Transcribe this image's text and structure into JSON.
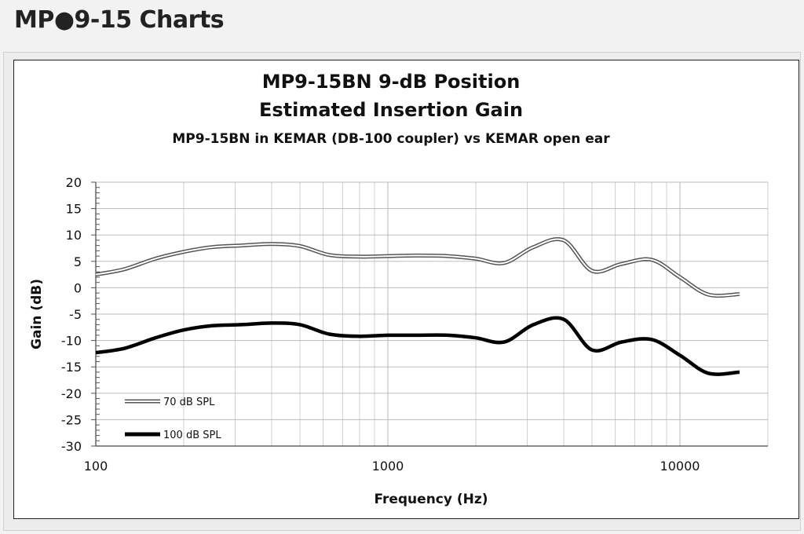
{
  "page": {
    "heading": "MP●9-15 Charts"
  },
  "chart_data": {
    "type": "line",
    "title": "MP9-15BN  9-dB Position",
    "title2": "Estimated Insertion Gain",
    "subtitle": "MP9-15BN in KEMAR (DB-100 coupler) vs KEMAR open ear",
    "xlabel": "Frequency (Hz)",
    "ylabel": "Gain (dB)",
    "x_scale": "log",
    "xlim": [
      100,
      20000
    ],
    "ylim": [
      -30,
      20
    ],
    "x_ticks": [
      100,
      1000,
      10000
    ],
    "x_tick_labels": [
      "100",
      "1000",
      "10000"
    ],
    "y_ticks": [
      20,
      15,
      10,
      5,
      0,
      -5,
      -10,
      -15,
      -20,
      -25,
      -30
    ],
    "y_tick_labels": [
      "20",
      "15",
      "10",
      "5",
      "0",
      "-5",
      "-10",
      "-15",
      "-20",
      "-25",
      "-30"
    ],
    "grid": true,
    "legend_position": "bottom-left",
    "series": [
      {
        "name": "70 dB SPL",
        "style": "double-line",
        "color": "#555555",
        "x": [
          100,
          125,
          160,
          200,
          250,
          315,
          400,
          500,
          630,
          800,
          1000,
          1250,
          1600,
          2000,
          2500,
          3150,
          4000,
          5000,
          6300,
          8000,
          10000,
          12500,
          16000
        ],
        "y": [
          2.5,
          3.5,
          5.5,
          6.8,
          7.7,
          8.0,
          8.3,
          7.9,
          6.2,
          5.9,
          6.0,
          6.1,
          6.0,
          5.5,
          4.7,
          7.7,
          9.0,
          3.2,
          4.5,
          5.3,
          2.0,
          -1.3,
          -1.2
        ]
      },
      {
        "name": "100 dB SPL",
        "style": "thick",
        "color": "#000000",
        "x": [
          100,
          125,
          160,
          200,
          250,
          315,
          400,
          500,
          630,
          800,
          1000,
          1250,
          1600,
          2000,
          2500,
          3150,
          4000,
          5000,
          6300,
          8000,
          10000,
          12500,
          16000
        ],
        "y": [
          -12.3,
          -11.5,
          -9.5,
          -8.0,
          -7.2,
          -7.0,
          -6.7,
          -7.0,
          -8.8,
          -9.2,
          -9.0,
          -9.0,
          -9.0,
          -9.5,
          -10.3,
          -7.0,
          -6.0,
          -11.8,
          -10.3,
          -9.8,
          -12.8,
          -16.2,
          -16.0
        ]
      }
    ]
  }
}
